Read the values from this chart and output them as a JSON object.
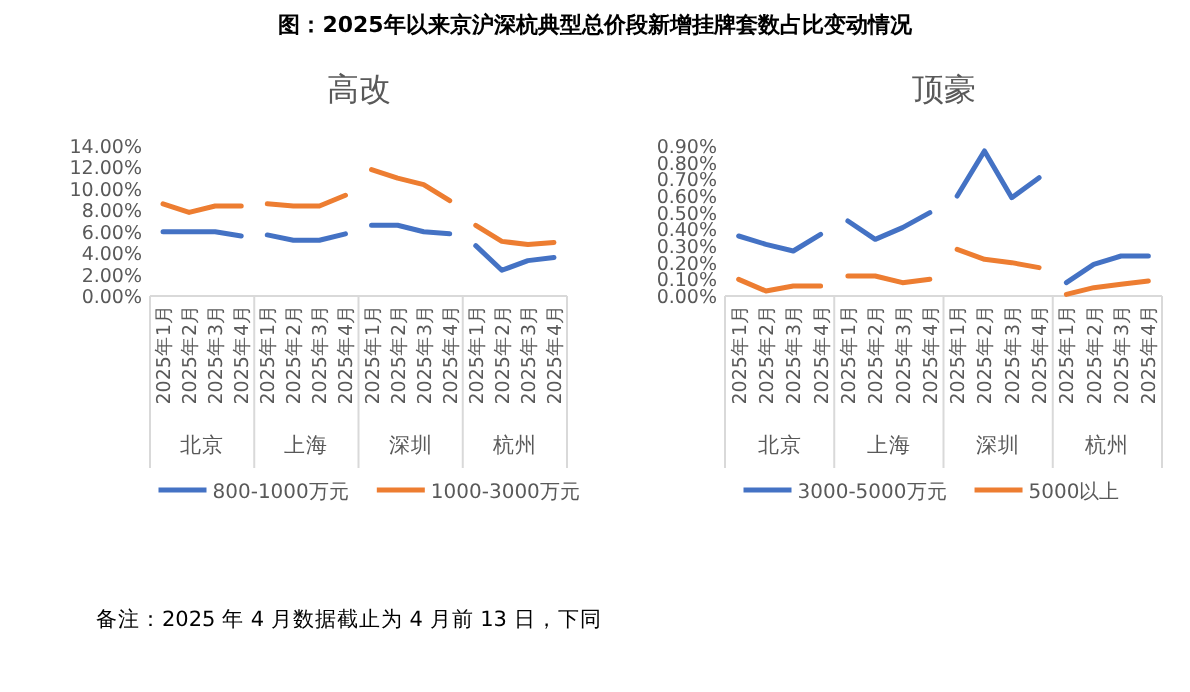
{
  "chart_data": [
    {
      "type": "line",
      "title": "图：2025年以来京沪深杭典型总价段新增挂牌套数占比变动情况",
      "subtitle": "高改",
      "categories": [
        "2025年1月",
        "2025年2月",
        "2025年3月",
        "2025年4月",
        "2025年1月",
        "2025年2月",
        "2025年3月",
        "2025年4月",
        "2025年1月",
        "2025年2月",
        "2025年3月",
        "2025年4月",
        "2025年1月",
        "2025年2月",
        "2025年3月",
        "2025年4月"
      ],
      "series": [
        {
          "name": "800-1000万元",
          "color": "#4472c4",
          "values": [
            6.0,
            6.0,
            6.0,
            5.6,
            5.7,
            5.2,
            5.2,
            5.8,
            6.6,
            6.6,
            6.0,
            5.8,
            4.7,
            2.4,
            3.3,
            3.6
          ]
        },
        {
          "name": "1000-3000万元",
          "color": "#ed7d31",
          "values": [
            8.6,
            7.8,
            8.4,
            8.4,
            8.6,
            8.4,
            8.4,
            9.4,
            11.8,
            11.0,
            10.4,
            8.9,
            6.6,
            5.1,
            4.8,
            5.0
          ]
        }
      ],
      "ylim": [
        0,
        14
      ],
      "yticks": [
        {
          "value": 0,
          "label": "0.00%"
        },
        {
          "value": 2,
          "label": "2.00%"
        },
        {
          "value": 4,
          "label": "4.00%"
        },
        {
          "value": 6,
          "label": "6.00%"
        },
        {
          "value": 8,
          "label": "8.00%"
        },
        {
          "value": 10,
          "label": "10.00%"
        },
        {
          "value": 12,
          "label": "12.00%"
        },
        {
          "value": 14,
          "label": "14.00%"
        }
      ],
      "legend": "bottom",
      "grid": false,
      "annotations": [
        "北京",
        "上海",
        "深圳",
        "杭州",
        "备注：2025 年 4 月数据截止为 4 月前 13 日，下同"
      ]
    },
    {
      "type": "line",
      "title": "顶豪",
      "categories": [
        "2025年1月",
        "2025年2月",
        "2025年3月",
        "2025年4月",
        "2025年1月",
        "2025年2月",
        "2025年3月",
        "2025年4月",
        "2025年1月",
        "2025年2月",
        "2025年3月",
        "2025年4月",
        "2025年1月",
        "2025年2月",
        "2025年3月",
        "2025年4月"
      ],
      "series": [
        {
          "name": "3000-5000万元",
          "color": "#4472c4",
          "values": [
            0.36,
            0.31,
            0.27,
            0.37,
            0.45,
            0.34,
            0.41,
            0.5,
            0.6,
            0.87,
            0.59,
            0.71,
            0.08,
            0.19,
            0.24,
            0.24
          ]
        },
        {
          "name": "5000以上",
          "color": "#ed7d31",
          "values": [
            0.1,
            0.03,
            0.06,
            0.06,
            0.12,
            0.12,
            0.08,
            0.1,
            0.28,
            0.22,
            0.2,
            0.17,
            0.01,
            0.05,
            0.07,
            0.09
          ]
        }
      ],
      "ylim": [
        0,
        0.9
      ],
      "yticks": [
        {
          "value": 0,
          "label": "0.00%"
        },
        {
          "value": 0.1,
          "label": "0.10%"
        },
        {
          "value": 0.2,
          "label": "0.20%"
        },
        {
          "value": 0.3,
          "label": "0.30%"
        },
        {
          "value": 0.4,
          "label": "0.40%"
        },
        {
          "value": 0.5,
          "label": "0.50%"
        },
        {
          "value": 0.6,
          "label": "0.60%"
        },
        {
          "value": 0.7,
          "label": "0.70%"
        },
        {
          "value": 0.8,
          "label": "0.80%"
        },
        {
          "value": 0.9,
          "label": "0.90%"
        }
      ],
      "legend": "bottom",
      "grid": false,
      "annotations": [
        "北京",
        "上海",
        "深圳",
        "杭州"
      ]
    }
  ]
}
